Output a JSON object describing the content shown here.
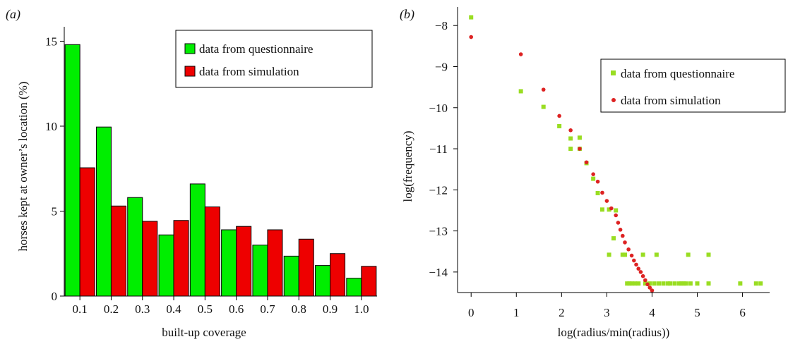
{
  "panels": [
    {
      "label": "(a)",
      "chart_data": {
        "type": "bar",
        "categories": [
          "0.1",
          "0.2",
          "0.3",
          "0.4",
          "0.5",
          "0.6",
          "0.7",
          "0.8",
          "0.9",
          "1.0"
        ],
        "series": [
          {
            "name": "data from questionnaire",
            "color": "#00ee00",
            "values": [
              14.8,
              9.95,
              5.8,
              3.6,
              6.6,
              3.9,
              3.0,
              2.35,
              1.8,
              1.05
            ]
          },
          {
            "name": "data from simulation",
            "color": "#ee0000",
            "values": [
              7.55,
              5.3,
              4.4,
              4.45,
              5.25,
              4.1,
              3.9,
              3.35,
              2.5,
              1.75
            ]
          }
        ],
        "xlabel": "built-up coverage",
        "ylabel": "horses kept at owner’s location (%)",
        "ylim": [
          0,
          15.6
        ],
        "yticks": [
          0,
          5,
          10,
          15
        ],
        "grid": false,
        "legend": "top-right, boxed"
      }
    },
    {
      "label": "(b)",
      "chart_data": {
        "type": "scatter",
        "series": [
          {
            "name": "data from questionnaire",
            "color": "#99dd22",
            "marker": "square",
            "points": [
              [
                0,
                -7.8
              ],
              [
                1.1,
                -9.6
              ],
              [
                1.6,
                -9.98
              ],
              [
                1.95,
                -10.45
              ],
              [
                2.2,
                -11.0
              ],
              [
                2.2,
                -10.75
              ],
              [
                2.4,
                -10.73
              ],
              [
                2.4,
                -11.0
              ],
              [
                2.55,
                -11.35
              ],
              [
                2.7,
                -11.73
              ],
              [
                2.8,
                -12.08
              ],
              [
                2.9,
                -12.48
              ],
              [
                3.05,
                -12.48
              ],
              [
                3.05,
                -13.58
              ],
              [
                3.15,
                -13.18
              ],
              [
                3.2,
                -12.5
              ],
              [
                3.35,
                -13.58
              ],
              [
                3.4,
                -13.58
              ],
              [
                3.45,
                -14.28
              ],
              [
                3.5,
                -14.28
              ],
              [
                3.55,
                -14.28
              ],
              [
                3.62,
                -14.28
              ],
              [
                3.7,
                -14.28
              ],
              [
                3.8,
                -13.58
              ],
              [
                3.85,
                -14.28
              ],
              [
                3.95,
                -14.28
              ],
              [
                4.05,
                -14.28
              ],
              [
                4.1,
                -13.58
              ],
              [
                4.15,
                -14.28
              ],
              [
                4.25,
                -14.28
              ],
              [
                4.35,
                -14.28
              ],
              [
                4.4,
                -14.28
              ],
              [
                4.5,
                -14.28
              ],
              [
                4.6,
                -14.28
              ],
              [
                4.65,
                -14.28
              ],
              [
                4.7,
                -14.28
              ],
              [
                4.75,
                -14.28
              ],
              [
                4.8,
                -13.58
              ],
              [
                4.85,
                -14.28
              ],
              [
                5.0,
                -14.28
              ],
              [
                5.25,
                -13.58
              ],
              [
                5.25,
                -14.28
              ],
              [
                5.95,
                -14.28
              ],
              [
                6.3,
                -14.28
              ],
              [
                6.4,
                -14.28
              ]
            ]
          },
          {
            "name": "data from simulation",
            "color": "#dd2222",
            "marker": "circle",
            "points": [
              [
                0,
                -8.28
              ],
              [
                1.1,
                -8.7
              ],
              [
                1.6,
                -9.56
              ],
              [
                1.95,
                -10.2
              ],
              [
                2.2,
                -10.55
              ],
              [
                2.4,
                -11.0
              ],
              [
                2.55,
                -11.33
              ],
              [
                2.7,
                -11.62
              ],
              [
                2.8,
                -11.8
              ],
              [
                2.9,
                -12.07
              ],
              [
                3.0,
                -12.27
              ],
              [
                3.1,
                -12.45
              ],
              [
                3.2,
                -12.62
              ],
              [
                3.25,
                -12.8
              ],
              [
                3.3,
                -12.97
              ],
              [
                3.35,
                -13.12
              ],
              [
                3.4,
                -13.28
              ],
              [
                3.48,
                -13.45
              ],
              [
                3.55,
                -13.6
              ],
              [
                3.6,
                -13.72
              ],
              [
                3.65,
                -13.82
              ],
              [
                3.7,
                -13.92
              ],
              [
                3.75,
                -14.0
              ],
              [
                3.8,
                -14.1
              ],
              [
                3.85,
                -14.2
              ],
              [
                3.9,
                -14.3
              ],
              [
                3.95,
                -14.38
              ],
              [
                4.0,
                -14.45
              ]
            ]
          }
        ],
        "xlabel": "log(radius/min(radius))",
        "ylabel": "log(frequency)",
        "xlim": [
          -0.3,
          6.6
        ],
        "ylim": [
          -14.5,
          -7.55
        ],
        "xticks": [
          0,
          1,
          2,
          3,
          4,
          5,
          6
        ],
        "yticks": [
          -8,
          -9,
          -10,
          -11,
          -12,
          -13,
          -14
        ],
        "grid": false,
        "legend": "upper-right, boxed"
      }
    }
  ]
}
